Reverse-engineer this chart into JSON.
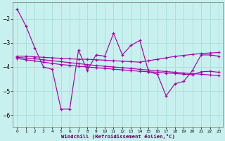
{
  "xlabel": "Windchill (Refroidissement éolien,°C)",
  "background_color": "#c8f0ee",
  "grid_color": "#a8ddd8",
  "line_color": "#aa00aa",
  "xlim": [
    -0.5,
    23.5
  ],
  "ylim": [
    -6.5,
    -1.3
  ],
  "yticks": [
    -6,
    -5,
    -4,
    -3,
    -2
  ],
  "xticks": [
    0,
    1,
    2,
    3,
    4,
    5,
    6,
    7,
    8,
    9,
    10,
    11,
    12,
    13,
    14,
    15,
    16,
    17,
    18,
    19,
    20,
    21,
    22,
    23
  ],
  "s1_x": [
    0,
    1,
    2,
    3,
    4,
    5,
    6,
    7,
    8,
    9,
    10,
    11,
    12,
    13,
    14,
    15,
    16,
    17,
    18,
    19,
    20,
    21,
    22,
    23
  ],
  "s1_y": [
    -1.6,
    -2.3,
    -3.2,
    -4.0,
    -4.1,
    -5.75,
    -5.75,
    -3.3,
    -4.15,
    -3.5,
    -3.55,
    -2.6,
    -3.5,
    -3.1,
    -2.9,
    -4.2,
    -4.3,
    -5.2,
    -4.7,
    -4.6,
    -4.15,
    -3.5,
    -3.5,
    -3.55
  ],
  "s2_x": [
    0,
    1,
    2,
    3,
    4,
    5,
    6,
    7,
    8,
    9,
    10,
    11,
    12,
    13,
    14,
    15,
    16,
    17,
    18,
    19,
    20,
    21,
    22,
    23
  ],
  "s2_y": [
    -3.55,
    -3.55,
    -3.58,
    -3.6,
    -3.62,
    -3.64,
    -3.66,
    -3.68,
    -3.68,
    -3.7,
    -3.72,
    -3.74,
    -3.76,
    -3.78,
    -3.8,
    -3.74,
    -3.68,
    -3.62,
    -3.56,
    -3.52,
    -3.48,
    -3.44,
    -3.42,
    -3.4
  ],
  "s3_x": [
    0,
    1,
    2,
    3,
    4,
    5,
    6,
    7,
    8,
    9,
    10,
    11,
    12,
    13,
    14,
    15,
    16,
    17,
    18,
    19,
    20,
    21,
    22,
    23
  ],
  "s3_y": [
    -3.6,
    -3.63,
    -3.66,
    -3.7,
    -3.74,
    -3.78,
    -3.82,
    -3.86,
    -3.9,
    -3.94,
    -3.97,
    -4.0,
    -4.03,
    -4.06,
    -4.1,
    -4.13,
    -4.16,
    -4.19,
    -4.22,
    -4.25,
    -4.28,
    -4.3,
    -4.33,
    -4.36
  ],
  "s4_x": [
    0,
    1,
    2,
    3,
    4,
    5,
    6,
    7,
    8,
    9,
    10,
    11,
    12,
    13,
    14,
    15,
    16,
    17,
    18,
    19,
    20,
    21,
    22,
    23
  ],
  "s4_y": [
    -3.65,
    -3.7,
    -3.75,
    -3.8,
    -3.85,
    -3.9,
    -3.93,
    -3.97,
    -4.0,
    -4.03,
    -4.06,
    -4.09,
    -4.12,
    -4.15,
    -4.18,
    -4.2,
    -4.22,
    -4.25,
    -4.27,
    -4.3,
    -4.32,
    -4.2,
    -4.18,
    -4.22
  ]
}
